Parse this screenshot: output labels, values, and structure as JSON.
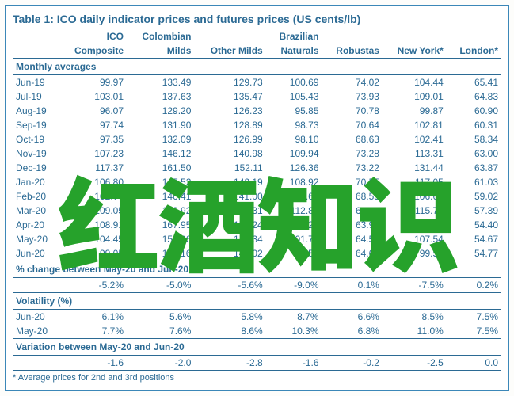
{
  "title": "Table 1: ICO daily indicator prices and futures prices (US cents/lb)",
  "columns_top": [
    "",
    "ICO",
    "Colombian",
    "",
    "Brazilian",
    "",
    "",
    ""
  ],
  "columns_bot": [
    "",
    "Composite",
    "Milds",
    "Other Milds",
    "Naturals",
    "Robustas",
    "New York*",
    "London*"
  ],
  "sections": [
    {
      "label": "Monthly averages",
      "rows": [
        [
          "Jun-19",
          "99.97",
          "133.49",
          "129.73",
          "100.69",
          "74.02",
          "104.44",
          "65.41"
        ],
        [
          "Jul-19",
          "103.01",
          "137.63",
          "135.47",
          "105.43",
          "73.93",
          "109.01",
          "64.83"
        ],
        [
          "Aug-19",
          "96.07",
          "129.20",
          "126.23",
          "95.85",
          "70.78",
          "99.87",
          "60.90"
        ],
        [
          "Sep-19",
          "97.74",
          "131.90",
          "128.89",
          "98.73",
          "70.64",
          "102.81",
          "60.31"
        ],
        [
          "Oct-19",
          "97.35",
          "132.09",
          "126.99",
          "98.10",
          "68.63",
          "102.41",
          "58.34"
        ],
        [
          "Nov-19",
          "107.23",
          "146.12",
          "140.98",
          "109.94",
          "73.28",
          "113.31",
          "63.00"
        ],
        [
          "Dec-19",
          "117.37",
          "161.50",
          "152.11",
          "126.36",
          "73.22",
          "131.44",
          "63.87"
        ],
        [
          "Jan-20",
          "106.80",
          "147.52",
          "142.19",
          "108.92",
          "70.55",
          "117.05",
          "61.03"
        ],
        [
          "Feb-20",
          "102.70",
          "146.41",
          "141.00",
          "102.67",
          "68.55",
          "106.69",
          "59.02"
        ],
        [
          "Mar-20",
          "109.05",
          "158.92",
          "152.31",
          "112.87",
          "67.46",
          "115.79",
          "57.39"
        ],
        [
          "Apr-20",
          "108.91",
          "167.95",
          "158.24",
          "110.27",
          "63.97",
          "115.55",
          "54.40"
        ],
        [
          "May-20",
          "104.45",
          "154.96",
          "149.34",
          "101.73",
          "64.57",
          "107.54",
          "54.67"
        ],
        [
          "Jun-20",
          "99.05",
          "147.16",
          "141.02",
          "92.56",
          "64.62",
          "99.50",
          "54.77"
        ]
      ]
    },
    {
      "label": "% change between May-20 and Jun-20",
      "rows": [
        [
          "",
          "-5.2%",
          "-5.0%",
          "-5.6%",
          "-9.0%",
          "0.1%",
          "-7.5%",
          "0.2%"
        ]
      ]
    },
    {
      "label": "Volatility (%)",
      "rows": [
        [
          "Jun-20",
          "6.1%",
          "5.6%",
          "5.8%",
          "8.7%",
          "6.6%",
          "8.5%",
          "7.5%"
        ],
        [
          "May-20",
          "7.7%",
          "7.6%",
          "8.6%",
          "10.3%",
          "6.8%",
          "11.0%",
          "7.5%"
        ]
      ]
    },
    {
      "label": "Variation between May-20 and Jun-20",
      "rows": [
        [
          "",
          "-1.6",
          "-2.0",
          "-2.8",
          "-1.6",
          "-0.2",
          "-2.5",
          "0.0"
        ]
      ]
    }
  ],
  "footnote": "* Average prices for 2nd and 3rd positions",
  "watermark": "红酒知识",
  "colors": {
    "border": "#3b87b8",
    "text": "#2b6a94",
    "watermark": "#26a22b",
    "watermark_outline": "#ffffff",
    "background": "#ffffff"
  }
}
